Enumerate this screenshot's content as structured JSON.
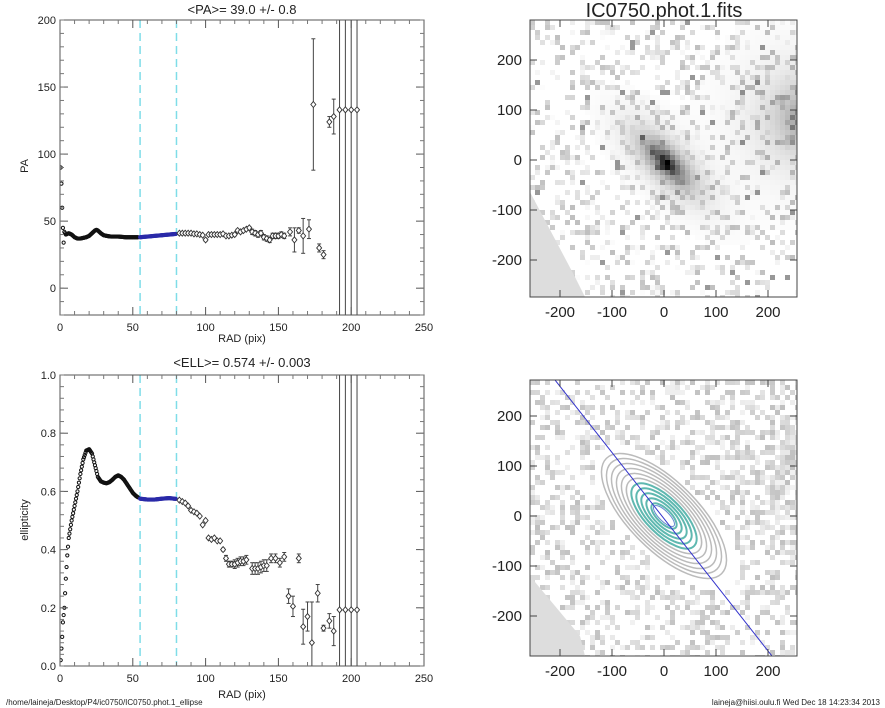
{
  "footer": {
    "path": "/home/laineja/Desktop/P4/ic0750/IC0750.phot.1_ellipse",
    "user_date": "laineja@hiisi.oulu.fi  Wed Dec 18 14:23:34 2013"
  },
  "colors": {
    "points": "#111111",
    "fit_range_points": "#2a2aa8",
    "range_lines": "#7fdde8",
    "errorbars": "#444444",
    "major_axis_line": "#3333cc",
    "contour": "#bbbbbb",
    "contour_inner": "#5fb8b0"
  },
  "chart_data": [
    {
      "type": "scatter",
      "title": "<PA>=  39.0 +/-   0.8",
      "xlabel": "RAD (pix)",
      "ylabel": "PA",
      "xlim": [
        0,
        250
      ],
      "ylim": [
        -20,
        200
      ],
      "xticks": [
        "0",
        "50",
        "100",
        "150",
        "200",
        "250"
      ],
      "yticks": [
        "0",
        "50",
        "100",
        "150",
        "200"
      ],
      "ytick_values": [
        0,
        50,
        100,
        150,
        200
      ],
      "range_lines_x": [
        55,
        80
      ],
      "dense": [
        [
          0.5,
          90
        ],
        [
          1,
          78
        ],
        [
          1.5,
          60
        ],
        [
          2,
          45
        ],
        [
          2.5,
          34
        ],
        [
          3,
          42
        ],
        [
          4,
          40
        ],
        [
          6,
          41
        ],
        [
          8,
          40
        ],
        [
          10,
          38
        ],
        [
          12,
          37
        ],
        [
          14,
          37
        ],
        [
          16,
          37.5
        ],
        [
          18,
          38
        ],
        [
          20,
          39
        ],
        [
          22,
          41
        ],
        [
          24,
          43
        ],
        [
          25,
          43.5
        ],
        [
          26,
          43
        ],
        [
          28,
          41
        ],
        [
          30,
          39.5
        ],
        [
          32,
          39
        ],
        [
          35,
          38.5
        ],
        [
          40,
          38.5
        ],
        [
          45,
          38
        ],
        [
          50,
          38
        ],
        [
          54,
          38
        ]
      ],
      "fit_range": [
        [
          55,
          38
        ],
        [
          60,
          38.5
        ],
        [
          65,
          39
        ],
        [
          70,
          39.5
        ],
        [
          75,
          40
        ],
        [
          80,
          40.5
        ]
      ],
      "outer": [
        [
          82,
          41,
          0
        ],
        [
          84,
          41,
          0
        ],
        [
          86,
          41,
          0
        ],
        [
          88,
          41,
          0
        ],
        [
          90,
          41,
          0
        ],
        [
          92,
          40.5,
          0
        ],
        [
          94,
          40.5,
          0
        ],
        [
          96,
          40,
          0
        ],
        [
          98,
          39.5,
          0
        ],
        [
          100,
          36,
          1
        ],
        [
          102,
          40,
          0.5
        ],
        [
          104,
          40,
          0.5
        ],
        [
          106,
          40,
          0.5
        ],
        [
          108,
          40,
          0.5
        ],
        [
          110,
          40,
          0.5
        ],
        [
          112,
          40.5,
          0.5
        ],
        [
          114,
          39,
          0.5
        ],
        [
          116,
          39,
          0.5
        ],
        [
          118,
          39.5,
          1
        ],
        [
          120,
          40,
          1
        ],
        [
          122,
          43,
          1
        ],
        [
          124,
          42,
          1
        ],
        [
          126,
          43,
          1
        ],
        [
          128,
          44,
          1
        ],
        [
          130,
          45,
          1
        ],
        [
          132,
          42,
          2
        ],
        [
          134,
          41,
          2
        ],
        [
          136,
          40,
          2
        ],
        [
          138,
          41,
          2
        ],
        [
          140,
          38,
          2
        ],
        [
          142,
          37,
          2
        ],
        [
          144,
          36,
          2
        ],
        [
          146,
          39,
          2
        ],
        [
          148,
          39,
          2
        ],
        [
          150,
          39,
          2
        ],
        [
          152,
          40,
          2
        ],
        [
          154,
          39,
          2
        ],
        [
          158,
          42,
          3
        ],
        [
          161,
          36,
          9
        ],
        [
          164,
          43,
          2
        ],
        [
          167,
          39,
          13
        ],
        [
          171,
          44,
          7
        ],
        [
          174,
          137,
          49
        ],
        [
          178,
          30,
          3
        ],
        [
          181,
          25,
          3
        ],
        [
          185,
          124,
          4
        ],
        [
          188,
          128,
          13
        ],
        [
          192,
          133,
          1000
        ],
        [
          196,
          133,
          1000
        ],
        [
          200,
          133,
          1000
        ],
        [
          204,
          133,
          1000
        ]
      ]
    },
    {
      "type": "scatter",
      "title": "<ELL>= 0.574 +/-  0.003",
      "xlabel": "RAD (pix)",
      "ylabel": "ellipticity",
      "xlim": [
        0,
        250
      ],
      "ylim": [
        0,
        1.0
      ],
      "xticks": [
        "0",
        "50",
        "100",
        "150",
        "200",
        "250"
      ],
      "yticks": [
        "0.0",
        "0.2",
        "0.4",
        "0.6",
        "0.8",
        "1.0"
      ],
      "ytick_values": [
        0,
        0.2,
        0.4,
        0.6,
        0.8,
        1.0
      ],
      "range_lines_x": [
        55,
        80
      ],
      "dense": [
        [
          0.5,
          0.02
        ],
        [
          1,
          0.06
        ],
        [
          1.5,
          0.1
        ],
        [
          2,
          0.15
        ],
        [
          3,
          0.2
        ],
        [
          4,
          0.3
        ],
        [
          5,
          0.38
        ],
        [
          6,
          0.44
        ],
        [
          8,
          0.5
        ],
        [
          10,
          0.55
        ],
        [
          12,
          0.6
        ],
        [
          14,
          0.66
        ],
        [
          16,
          0.71
        ],
        [
          18,
          0.74
        ],
        [
          20,
          0.745
        ],
        [
          22,
          0.73
        ],
        [
          24,
          0.69
        ],
        [
          26,
          0.65
        ],
        [
          28,
          0.635
        ],
        [
          30,
          0.63
        ],
        [
          32,
          0.628
        ],
        [
          34,
          0.632
        ],
        [
          36,
          0.64
        ],
        [
          38,
          0.65
        ],
        [
          40,
          0.655
        ],
        [
          42,
          0.65
        ],
        [
          44,
          0.64
        ],
        [
          46,
          0.625
        ],
        [
          48,
          0.61
        ],
        [
          50,
          0.595
        ],
        [
          52,
          0.585
        ],
        [
          54,
          0.578
        ]
      ],
      "fit_range": [
        [
          55,
          0.575
        ],
        [
          60,
          0.572
        ],
        [
          65,
          0.572
        ],
        [
          70,
          0.575
        ],
        [
          75,
          0.577
        ],
        [
          80,
          0.574
        ]
      ],
      "outer": [
        [
          82,
          0.57,
          0
        ],
        [
          84,
          0.565,
          0
        ],
        [
          86,
          0.56,
          0
        ],
        [
          88,
          0.55,
          0
        ],
        [
          90,
          0.535,
          0
        ],
        [
          92,
          0.53,
          0
        ],
        [
          94,
          0.525,
          0
        ],
        [
          96,
          0.515,
          0
        ],
        [
          98,
          0.485,
          0
        ],
        [
          100,
          0.5,
          0
        ],
        [
          102,
          0.44,
          0
        ],
        [
          104,
          0.435,
          0
        ],
        [
          106,
          0.44,
          0
        ],
        [
          108,
          0.43,
          0
        ],
        [
          110,
          0.43,
          0
        ],
        [
          112,
          0.4,
          0.005
        ],
        [
          114,
          0.37,
          0.01
        ],
        [
          116,
          0.35,
          0.01
        ],
        [
          118,
          0.35,
          0.01
        ],
        [
          120,
          0.35,
          0.015
        ],
        [
          122,
          0.355,
          0.015
        ],
        [
          124,
          0.36,
          0.015
        ],
        [
          126,
          0.36,
          0.015
        ],
        [
          128,
          0.365,
          0.015
        ],
        [
          132,
          0.335,
          0.02
        ],
        [
          134,
          0.335,
          0.02
        ],
        [
          136,
          0.335,
          0.02
        ],
        [
          138,
          0.34,
          0.02
        ],
        [
          140,
          0.345,
          0.02
        ],
        [
          142,
          0.345,
          0.02
        ],
        [
          145,
          0.37,
          0.015
        ],
        [
          148,
          0.37,
          0.015
        ],
        [
          151,
          0.355,
          0.015
        ],
        [
          154,
          0.375,
          0.015
        ],
        [
          157,
          0.24,
          0.025
        ],
        [
          160,
          0.205,
          0.035
        ],
        [
          164,
          0.37,
          0.015
        ],
        [
          167,
          0.135,
          0.06
        ],
        [
          170,
          0.17,
          0.05
        ],
        [
          173,
          0.08,
          0.14
        ],
        [
          177,
          0.25,
          0.03
        ],
        [
          181,
          0.13,
          0.01
        ],
        [
          185,
          0.155,
          0.025
        ],
        [
          188,
          0.12,
          0.05
        ],
        [
          192,
          0.193,
          10
        ],
        [
          196,
          0.193,
          10
        ],
        [
          200,
          0.193,
          10
        ],
        [
          204,
          0.193,
          10
        ]
      ]
    }
  ],
  "images": {
    "top": {
      "title": "IC0750.phot.1.fits",
      "ticks": [
        "-200",
        "-100",
        "0",
        "100",
        "200"
      ],
      "tick_values": [
        -200,
        -100,
        0,
        100,
        200
      ]
    },
    "bottom": {
      "ticks": [
        "-200",
        "-100",
        "0",
        "100",
        "200"
      ],
      "tick_values": [
        -200,
        -100,
        0,
        100,
        200
      ]
    }
  }
}
